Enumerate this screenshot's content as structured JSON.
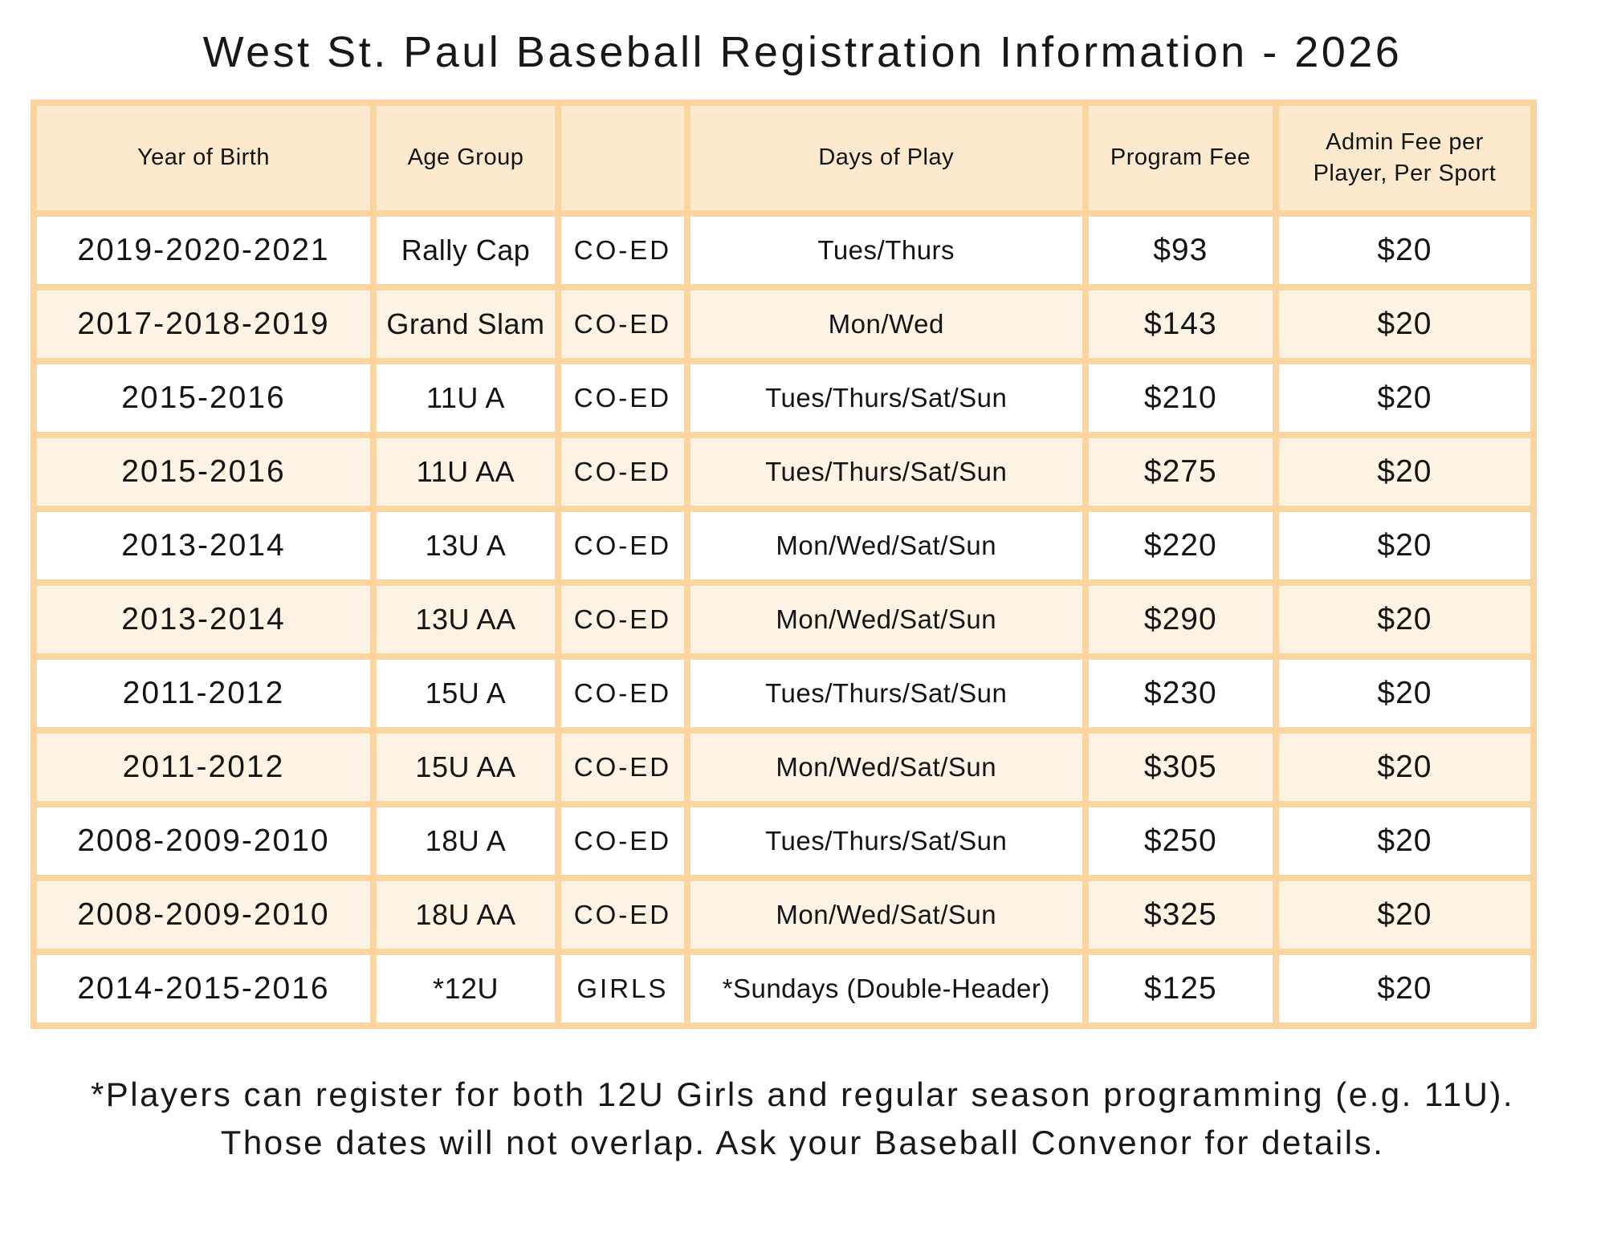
{
  "title": "West St. Paul Baseball Registration Information - 2026",
  "table": {
    "headers": [
      "Year of Birth",
      "Age Group",
      "",
      "Days of Play",
      "Program Fee",
      "Admin Fee per Player, Per Sport"
    ],
    "rows": [
      {
        "year": "2019-2020-2021",
        "age_group": "Rally Cap",
        "division": "CO-ED",
        "days": "Tues/Thurs",
        "program_fee": "$93",
        "admin_fee": "$20"
      },
      {
        "year": "2017-2018-2019",
        "age_group": "Grand Slam",
        "division": "CO-ED",
        "days": "Mon/Wed",
        "program_fee": "$143",
        "admin_fee": "$20"
      },
      {
        "year": "2015-2016",
        "age_group": "11U A",
        "division": "CO-ED",
        "days": "Tues/Thurs/Sat/Sun",
        "program_fee": "$210",
        "admin_fee": "$20"
      },
      {
        "year": "2015-2016",
        "age_group": "11U AA",
        "division": "CO-ED",
        "days": "Tues/Thurs/Sat/Sun",
        "program_fee": "$275",
        "admin_fee": "$20"
      },
      {
        "year": "2013-2014",
        "age_group": "13U A",
        "division": "CO-ED",
        "days": "Mon/Wed/Sat/Sun",
        "program_fee": "$220",
        "admin_fee": "$20"
      },
      {
        "year": "2013-2014",
        "age_group": "13U AA",
        "division": "CO-ED",
        "days": "Mon/Wed/Sat/Sun",
        "program_fee": "$290",
        "admin_fee": "$20"
      },
      {
        "year": "2011-2012",
        "age_group": "15U A",
        "division": "CO-ED",
        "days": "Tues/Thurs/Sat/Sun",
        "program_fee": "$230",
        "admin_fee": "$20"
      },
      {
        "year": "2011-2012",
        "age_group": "15U AA",
        "division": "CO-ED",
        "days": "Mon/Wed/Sat/Sun",
        "program_fee": "$305",
        "admin_fee": "$20"
      },
      {
        "year": "2008-2009-2010",
        "age_group": "18U A",
        "division": "CO-ED",
        "days": "Tues/Thurs/Sat/Sun",
        "program_fee": "$250",
        "admin_fee": "$20"
      },
      {
        "year": "2008-2009-2010",
        "age_group": "18U AA",
        "division": "CO-ED",
        "days": "Mon/Wed/Sat/Sun",
        "program_fee": "$325",
        "admin_fee": "$20"
      },
      {
        "year": "2014-2015-2016",
        "age_group": "*12U",
        "division": "GIRLS",
        "days": "*Sundays (Double-Header)",
        "program_fee": "$125",
        "admin_fee": "$20"
      }
    ]
  },
  "footnote": "*Players can register for both 12U Girls and regular season programming (e.g. 11U). Those dates will not overlap. Ask your Baseball Convenor for details.",
  "colors": {
    "table_border": "#fbd5a0",
    "header_background": "#fce9ce",
    "alternate_row_background": "#fdf3e5",
    "row_background": "#ffffff",
    "text": "#141414"
  }
}
